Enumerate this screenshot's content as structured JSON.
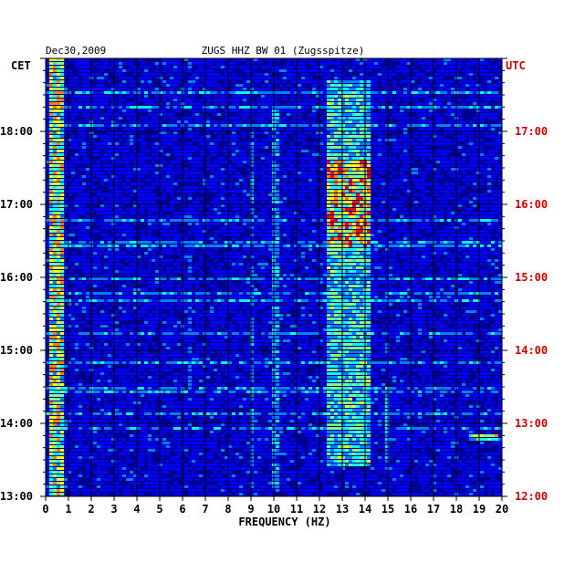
{
  "chart_data": {
    "type": "heatmap",
    "date": "Dec30,2009",
    "title": "ZUGS HHZ BW 01 (Zugsspitze)",
    "xlabel": "FREQUENCY (HZ)",
    "xlim": [
      0,
      20
    ],
    "x_ticks": [
      "0",
      "1",
      "2",
      "3",
      "4",
      "5",
      "6",
      "7",
      "8",
      "9",
      "10",
      "11",
      "12",
      "13",
      "14",
      "15",
      "16",
      "17",
      "18",
      "19",
      "20"
    ],
    "left_axis": {
      "label": "CET",
      "range": [
        "13:00",
        "19:00"
      ],
      "ticks": [
        {
          "label": "13:00",
          "hour": 13
        },
        {
          "label": "14:00",
          "hour": 14
        },
        {
          "label": "15:00",
          "hour": 15
        },
        {
          "label": "16:00",
          "hour": 16
        },
        {
          "label": "17:00",
          "hour": 17
        },
        {
          "label": "18:00",
          "hour": 18
        }
      ]
    },
    "right_axis": {
      "label": "UTC",
      "color": "#cc0000",
      "ticks": [
        {
          "label": "12:00",
          "hour": 13
        },
        {
          "label": "13:00",
          "hour": 14
        },
        {
          "label": "14:00",
          "hour": 15
        },
        {
          "label": "15:00",
          "hour": 16
        },
        {
          "label": "16:00",
          "hour": 17
        },
        {
          "label": "17:00",
          "hour": 18
        }
      ]
    },
    "colormap": [
      "#00008f",
      "#0000ff",
      "#0080ff",
      "#00ffff",
      "#80ff80",
      "#ffff00",
      "#ff8000",
      "#ff0000"
    ],
    "grid": true,
    "features": [
      {
        "note": "strong low-frequency energy",
        "freq_range_hz": [
          0.1,
          0.8
        ],
        "hours": [
          13.0,
          19.0
        ],
        "intensity": 0.75
      },
      {
        "note": "spectral band",
        "freq_range_hz": [
          12.3,
          14.3
        ],
        "hours": [
          13.4,
          18.7
        ],
        "intensity": 0.55
      },
      {
        "note": "burst",
        "freq_range_hz": [
          12.4,
          14.2
        ],
        "hours": [
          16.4,
          17.6
        ],
        "intensity": 0.85
      },
      {
        "note": "line",
        "freq_range_hz": [
          9.9,
          10.2
        ],
        "hours": [
          13.1,
          18.3
        ],
        "intensity": 0.4
      },
      {
        "note": "line",
        "freq_range_hz": [
          8.9,
          9.1
        ],
        "hours": [
          13.1,
          18.0
        ],
        "intensity": 0.35
      },
      {
        "note": "line",
        "freq_range_hz": [
          6.2,
          6.4
        ],
        "hours": [
          14.5,
          16.5
        ],
        "intensity": 0.3
      },
      {
        "note": "line",
        "freq_range_hz": [
          14.9,
          15.1
        ],
        "hours": [
          13.3,
          14.4
        ],
        "intensity": 0.45
      },
      {
        "note": "line",
        "freq_range_hz": [
          18.6,
          19.8
        ],
        "hours": [
          13.75,
          13.85
        ],
        "intensity": 0.7
      }
    ]
  }
}
